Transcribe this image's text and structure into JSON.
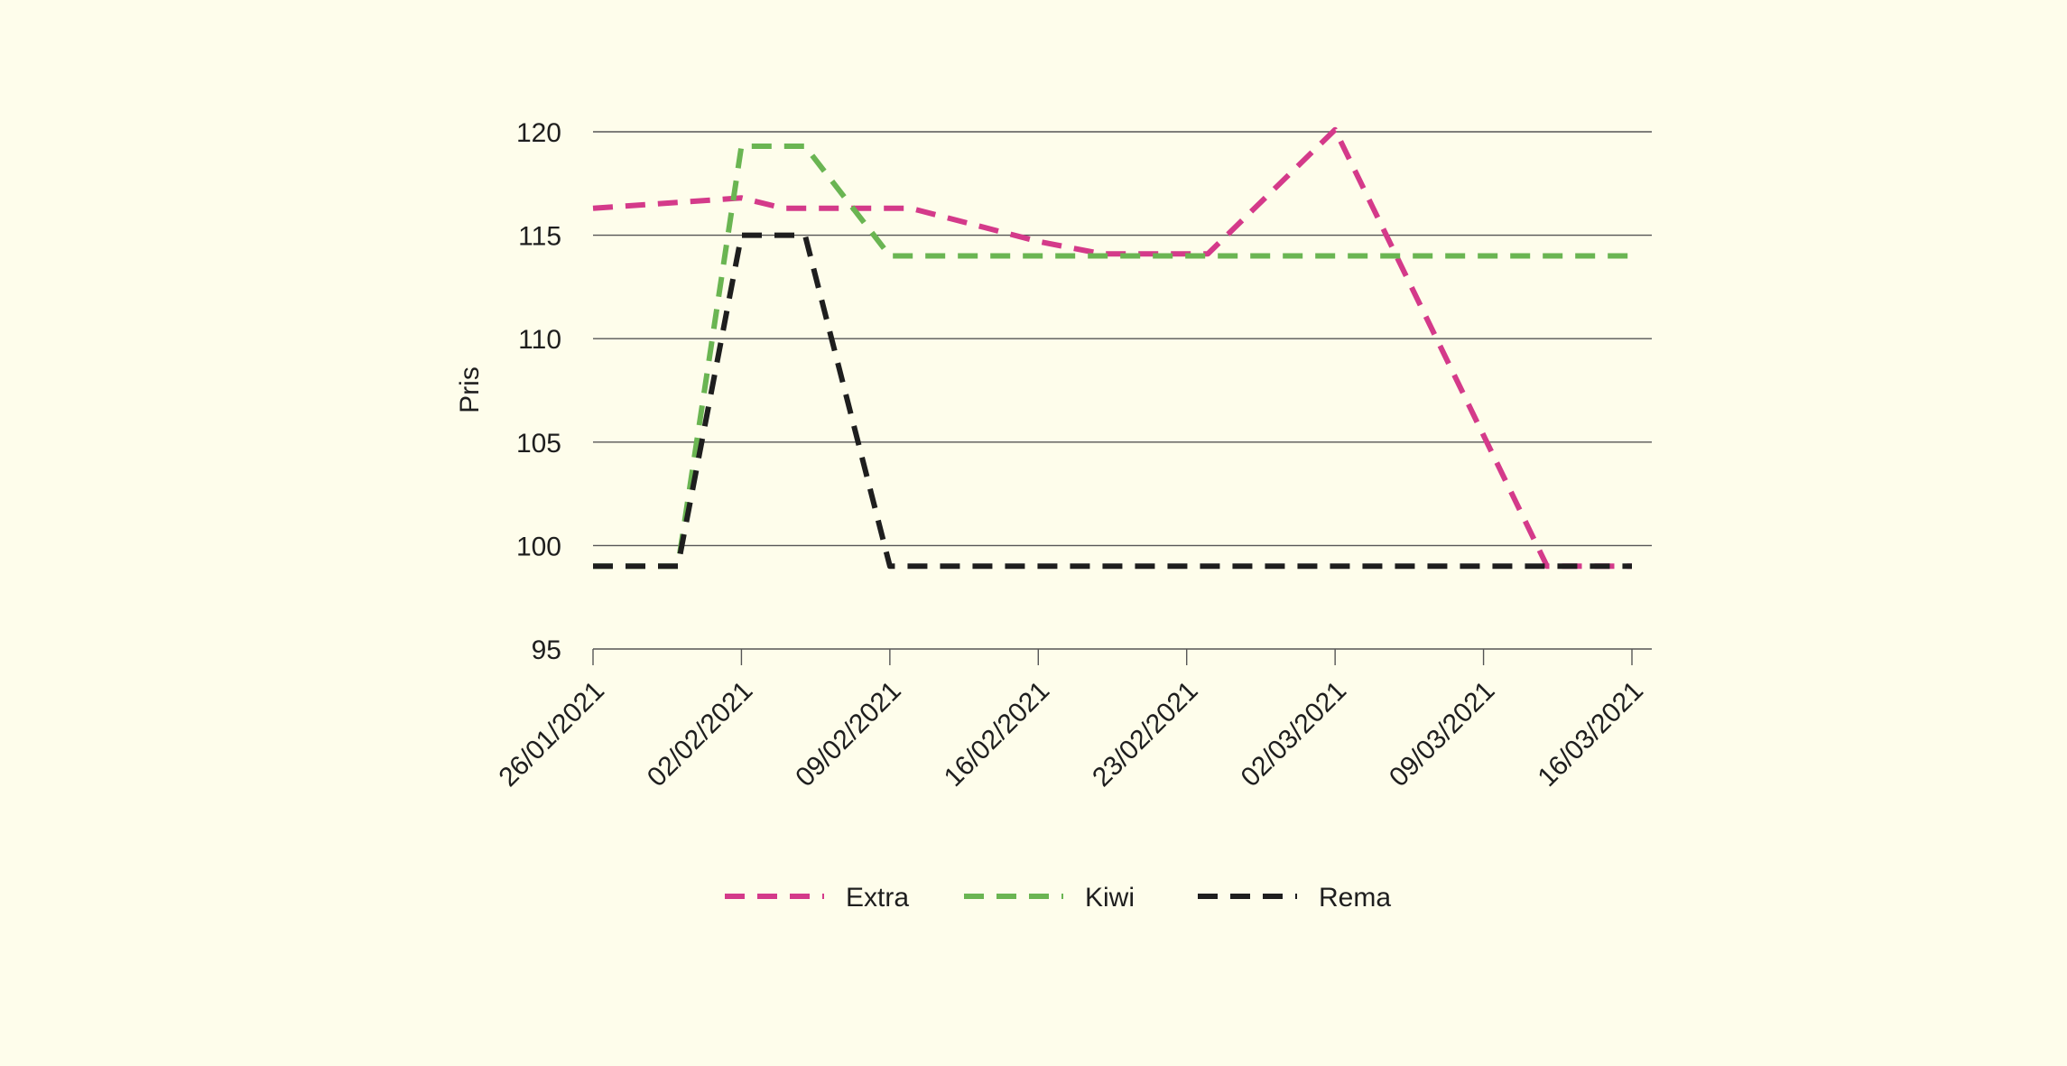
{
  "chart_data": {
    "type": "line",
    "title": "",
    "xlabel": "",
    "ylabel": "Pris",
    "ylim": [
      95,
      120
    ],
    "yticks": [
      95,
      100,
      105,
      110,
      115,
      120
    ],
    "x_start": "26/01/2021",
    "x_end": "16/03/2021",
    "xticks": [
      "26/01/2021",
      "02/02/2021",
      "09/02/2021",
      "16/02/2021",
      "23/02/2021",
      "02/03/2021",
      "09/03/2021",
      "16/03/2021"
    ],
    "grid": "horizontal",
    "legend_position": "bottom",
    "series": [
      {
        "name": "Extra",
        "color": "#d43a8a",
        "points": [
          {
            "x": "26/01/2021",
            "y": 116.3
          },
          {
            "x": "02/02/2021",
            "y": 116.8
          },
          {
            "x": "04/02/2021",
            "y": 116.3
          },
          {
            "x": "09/02/2021",
            "y": 116.3
          },
          {
            "x": "10/02/2021",
            "y": 116.3
          },
          {
            "x": "16/02/2021",
            "y": 114.7
          },
          {
            "x": "19/02/2021",
            "y": 114.1
          },
          {
            "x": "24/02/2021",
            "y": 114.1
          },
          {
            "x": "02/03/2021",
            "y": 120.1
          },
          {
            "x": "12/03/2021",
            "y": 99
          },
          {
            "x": "16/03/2021",
            "y": 99
          }
        ]
      },
      {
        "name": "Kiwi",
        "color": "#6ab552",
        "points": [
          {
            "x": "26/01/2021",
            "y": 99
          },
          {
            "x": "30/01/2021",
            "y": 99
          },
          {
            "x": "02/02/2021",
            "y": 119.3
          },
          {
            "x": "05/02/2021",
            "y": 119.3
          },
          {
            "x": "09/02/2021",
            "y": 114
          },
          {
            "x": "16/03/2021",
            "y": 114
          }
        ]
      },
      {
        "name": "Rema",
        "color": "#1e1e1e",
        "points": [
          {
            "x": "26/01/2021",
            "y": 99
          },
          {
            "x": "30/01/2021",
            "y": 99
          },
          {
            "x": "02/02/2021",
            "y": 115
          },
          {
            "x": "05/02/2021",
            "y": 115
          },
          {
            "x": "09/02/2021",
            "y": 99
          },
          {
            "x": "16/03/2021",
            "y": 99
          }
        ]
      }
    ]
  }
}
